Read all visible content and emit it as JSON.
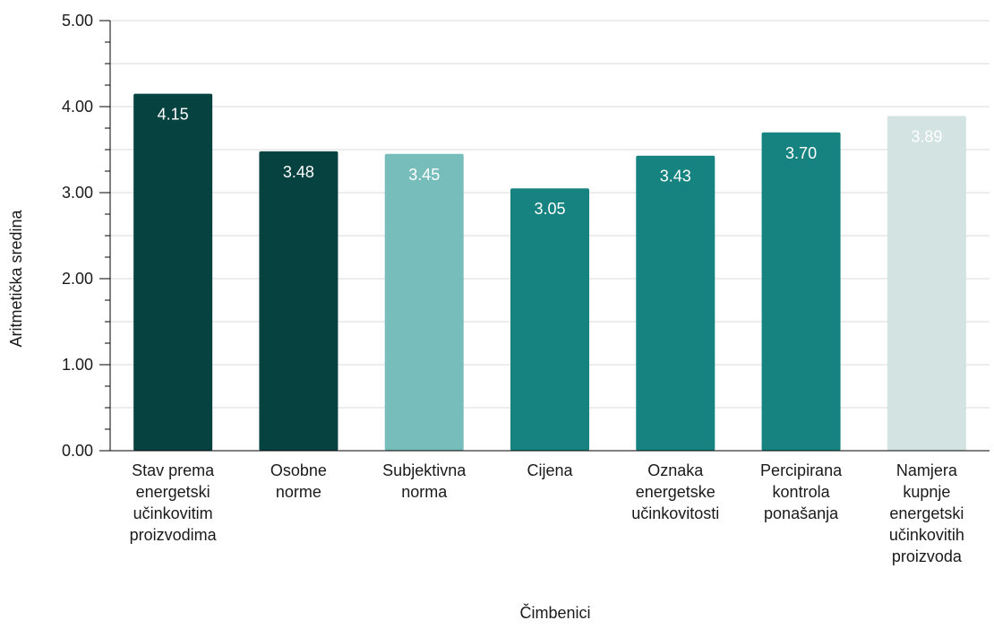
{
  "chart_data": {
    "type": "bar",
    "title": "",
    "xlabel": "Čimbenici",
    "ylabel": "Aritmetička sredina",
    "ylim": [
      0,
      5
    ],
    "y_ticks": [
      "0.00",
      "1.00",
      "2.00",
      "3.00",
      "4.00",
      "5.00"
    ],
    "grid": true,
    "categories": [
      [
        "Stav prema",
        "energetski",
        "učinkovitim",
        "proizvodima"
      ],
      [
        "Osobne",
        "norme"
      ],
      [
        "Subjektivna",
        "norma"
      ],
      [
        "Cijena"
      ],
      [
        "Oznaka",
        "energetske",
        "učinkovitosti"
      ],
      [
        "Percipirana",
        "kontrola",
        "ponašanja"
      ],
      [
        "Namjera",
        "kupnje",
        "energetski",
        "učinkovitih",
        "proizvoda"
      ]
    ],
    "values": [
      4.15,
      3.48,
      3.45,
      3.05,
      3.43,
      3.7,
      3.89
    ],
    "value_labels": [
      "4.15",
      "3.48",
      "3.45",
      "3.05",
      "3.43",
      "3.70",
      "3.89"
    ],
    "bar_colors": [
      "#064240",
      "#064240",
      "#77bdbc",
      "#168380",
      "#168380",
      "#168380",
      "#d2e3e2"
    ],
    "colors": {
      "grid": "#d9d9d9",
      "axis": "#000000"
    }
  }
}
